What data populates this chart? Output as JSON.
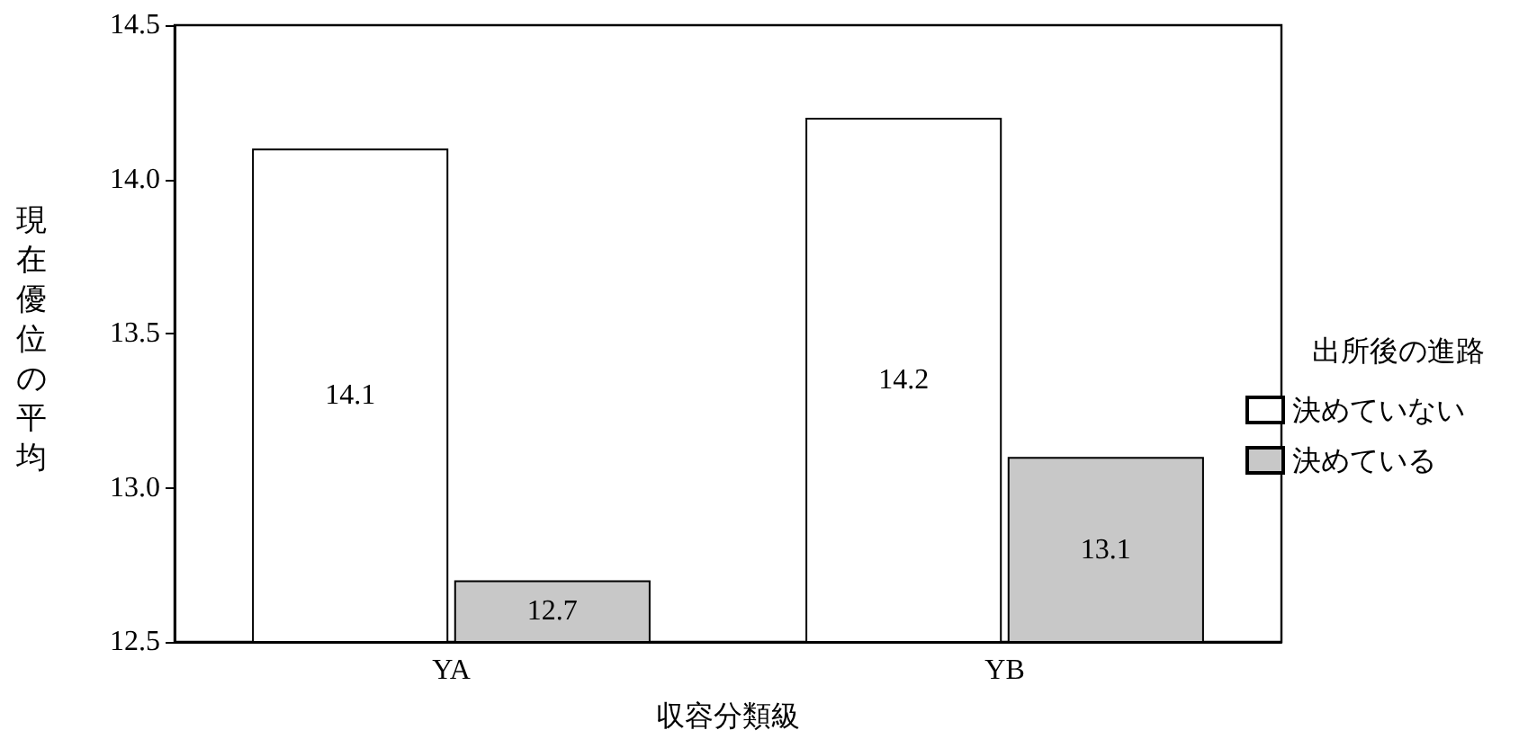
{
  "chart_data": {
    "type": "bar",
    "xlabel": "収容分類級",
    "ylabel": "現在優位の平均",
    "legend_title": "出所後の進路",
    "categories": [
      "YA",
      "YB"
    ],
    "series": [
      {
        "name": "決めていない",
        "color": "#ffffff",
        "values": [
          14.1,
          14.2
        ]
      },
      {
        "name": "決めている",
        "color": "#c8c8c8",
        "values": [
          12.7,
          13.1
        ]
      }
    ],
    "ylim": [
      12.5,
      14.5
    ],
    "yticks": [
      12.5,
      {
        "value": 13,
        "label": "13.0"
      },
      13.5,
      {
        "value": 14,
        "label": "14.0"
      },
      14.5
    ],
    "data_labels": true,
    "grid": false,
    "legend": "right"
  }
}
